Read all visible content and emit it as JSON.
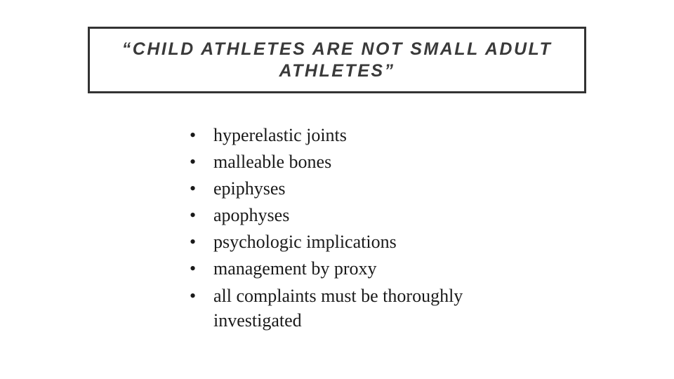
{
  "slide": {
    "title": "“CHILD ATHLETES ARE NOT SMALL ADULT ATHLETES”",
    "title_color": "#3a3a3a",
    "title_border_color": "#333333",
    "title_border_width": 3,
    "title_fontsize": 25,
    "title_letter_spacing": 2.5,
    "background_color": "#ffffff",
    "bullets": [
      "hyperelastic joints",
      "malleable bones",
      "epiphyses",
      "apophyses",
      "psychologic implications",
      "management by proxy",
      "all complaints must be thoroughly investigated"
    ],
    "bullet_color": "#1a1a1a",
    "bullet_fontsize": 26,
    "bullet_marker": "•"
  }
}
